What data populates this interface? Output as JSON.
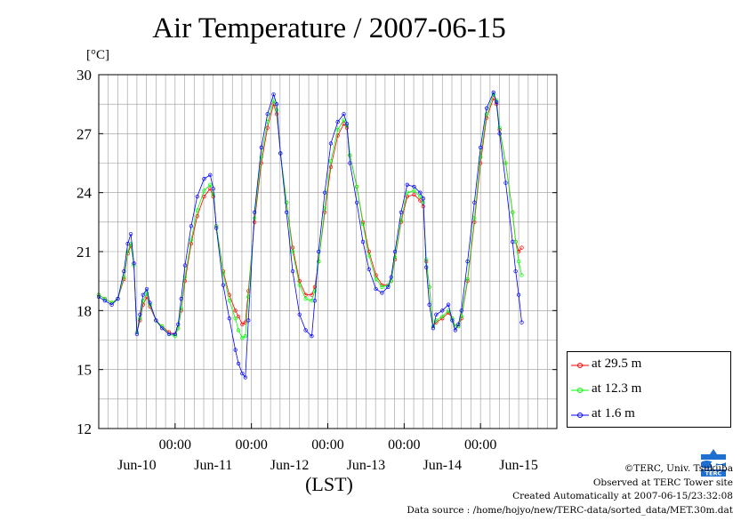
{
  "title": "Air Temperature / 2007-06-15",
  "y_unit": "[°C]",
  "x_unit": "(LST)",
  "legend": [
    {
      "label": "at 29.5 m",
      "color": "#ff0000"
    },
    {
      "label": "at 12.3 m",
      "color": "#00ff00"
    },
    {
      "label": "at 1.6 m",
      "color": "#0000ff"
    }
  ],
  "credits": {
    "copyright": "©TERC, Univ. Tsukuba",
    "observed": "Observed at TERC Tower site",
    "created": "Created Automatically at 2007-06-15/23:32:08",
    "source": "Data source : /home/hojyo/new/TERC-data/sorted_data/MET.30m.dat"
  },
  "chart_data": {
    "type": "line",
    "title": "Air Temperature / 2007-06-15",
    "ylabel": "[°C]",
    "xlabel": "(LST)",
    "ylim": [
      12,
      30
    ],
    "yticks": [
      12,
      15,
      18,
      21,
      24,
      27,
      30
    ],
    "xlim": [
      0,
      6
    ],
    "x_unit_note": "days since Jun-09 00:00",
    "xtick_labels_top": [
      "00:00",
      "00:00",
      "00:00",
      "00:00",
      "00:00"
    ],
    "xtick_labels_bottom": [
      "Jun-10",
      "Jun-11",
      "Jun-12",
      "Jun-13",
      "Jun-14",
      "Jun-15"
    ],
    "grid": true,
    "legend_position": "right",
    "series": [
      {
        "name": "at 29.5 m",
        "color": "#ff0000",
        "points": [
          [
            0.0,
            18.8
          ],
          [
            0.08,
            18.6
          ],
          [
            0.17,
            18.4
          ],
          [
            0.25,
            18.6
          ],
          [
            0.33,
            19.6
          ],
          [
            0.38,
            20.9
          ],
          [
            0.42,
            21.3
          ],
          [
            0.46,
            20.4
          ],
          [
            0.5,
            16.9
          ],
          [
            0.54,
            17.5
          ],
          [
            0.58,
            18.3
          ],
          [
            0.63,
            18.7
          ],
          [
            0.67,
            18.2
          ],
          [
            0.75,
            17.5
          ],
          [
            0.83,
            17.2
          ],
          [
            0.92,
            16.9
          ],
          [
            1.0,
            16.8
          ],
          [
            1.04,
            17.1
          ],
          [
            1.08,
            18.0
          ],
          [
            1.13,
            19.5
          ],
          [
            1.21,
            21.4
          ],
          [
            1.29,
            22.8
          ],
          [
            1.38,
            23.8
          ],
          [
            1.46,
            24.2
          ],
          [
            1.5,
            23.8
          ],
          [
            1.54,
            22.3
          ],
          [
            1.63,
            20.0
          ],
          [
            1.71,
            18.8
          ],
          [
            1.79,
            18.0
          ],
          [
            1.83,
            17.7
          ],
          [
            1.88,
            17.3
          ],
          [
            1.92,
            17.4
          ],
          [
            1.96,
            19.0
          ],
          [
            2.04,
            22.5
          ],
          [
            2.13,
            25.5
          ],
          [
            2.21,
            27.3
          ],
          [
            2.29,
            28.5
          ],
          [
            2.33,
            28.0
          ],
          [
            2.38,
            26.0
          ],
          [
            2.46,
            23.5
          ],
          [
            2.54,
            21.2
          ],
          [
            2.63,
            19.5
          ],
          [
            2.71,
            18.8
          ],
          [
            2.79,
            18.8
          ],
          [
            2.83,
            19.2
          ],
          [
            2.88,
            20.5
          ],
          [
            2.96,
            23.0
          ],
          [
            3.04,
            25.3
          ],
          [
            3.13,
            26.9
          ],
          [
            3.21,
            27.5
          ],
          [
            3.25,
            27.3
          ],
          [
            3.29,
            25.9
          ],
          [
            3.38,
            24.3
          ],
          [
            3.46,
            22.5
          ],
          [
            3.54,
            21.0
          ],
          [
            3.63,
            19.8
          ],
          [
            3.71,
            19.3
          ],
          [
            3.79,
            19.3
          ],
          [
            3.83,
            19.5
          ],
          [
            3.88,
            20.6
          ],
          [
            3.96,
            22.5
          ],
          [
            4.04,
            23.8
          ],
          [
            4.13,
            23.9
          ],
          [
            4.21,
            23.6
          ],
          [
            4.25,
            23.3
          ],
          [
            4.29,
            20.5
          ],
          [
            4.33,
            19.2
          ],
          [
            4.38,
            17.2
          ],
          [
            4.42,
            17.4
          ],
          [
            4.5,
            17.6
          ],
          [
            4.58,
            17.9
          ],
          [
            4.63,
            17.6
          ],
          [
            4.67,
            17.2
          ],
          [
            4.71,
            17.2
          ],
          [
            4.75,
            17.6
          ],
          [
            4.83,
            19.5
          ],
          [
            4.92,
            22.5
          ],
          [
            5.0,
            25.5
          ],
          [
            5.08,
            27.8
          ],
          [
            5.17,
            28.8
          ],
          [
            5.21,
            28.5
          ],
          [
            5.25,
            27.2
          ],
          [
            5.33,
            25.5
          ],
          [
            5.42,
            23.0
          ],
          [
            5.46,
            21.5
          ],
          [
            5.5,
            21.0
          ],
          [
            5.54,
            21.2
          ]
        ]
      },
      {
        "name": "at 12.3 m",
        "color": "#00ff00",
        "points": [
          [
            0.0,
            18.8
          ],
          [
            0.08,
            18.6
          ],
          [
            0.17,
            18.4
          ],
          [
            0.25,
            18.6
          ],
          [
            0.33,
            19.7
          ],
          [
            0.38,
            21.0
          ],
          [
            0.42,
            21.4
          ],
          [
            0.46,
            20.3
          ],
          [
            0.5,
            16.9
          ],
          [
            0.54,
            17.6
          ],
          [
            0.58,
            18.5
          ],
          [
            0.63,
            18.9
          ],
          [
            0.67,
            18.3
          ],
          [
            0.75,
            17.5
          ],
          [
            0.83,
            17.2
          ],
          [
            0.92,
            16.8
          ],
          [
            1.0,
            16.7
          ],
          [
            1.04,
            17.1
          ],
          [
            1.08,
            18.1
          ],
          [
            1.13,
            19.7
          ],
          [
            1.21,
            21.6
          ],
          [
            1.29,
            23.1
          ],
          [
            1.38,
            24.1
          ],
          [
            1.46,
            24.4
          ],
          [
            1.5,
            23.9
          ],
          [
            1.54,
            22.3
          ],
          [
            1.63,
            19.9
          ],
          [
            1.71,
            18.5
          ],
          [
            1.79,
            17.6
          ],
          [
            1.83,
            17.0
          ],
          [
            1.88,
            16.6
          ],
          [
            1.92,
            16.7
          ],
          [
            1.96,
            18.7
          ],
          [
            2.04,
            22.7
          ],
          [
            2.13,
            25.8
          ],
          [
            2.21,
            27.6
          ],
          [
            2.29,
            28.7
          ],
          [
            2.33,
            28.2
          ],
          [
            2.38,
            26.0
          ],
          [
            2.46,
            23.5
          ],
          [
            2.54,
            21.0
          ],
          [
            2.63,
            19.3
          ],
          [
            2.71,
            18.6
          ],
          [
            2.79,
            18.5
          ],
          [
            2.83,
            19.0
          ],
          [
            2.88,
            20.5
          ],
          [
            2.96,
            23.2
          ],
          [
            3.04,
            25.6
          ],
          [
            3.13,
            27.2
          ],
          [
            3.21,
            27.7
          ],
          [
            3.25,
            27.4
          ],
          [
            3.29,
            25.9
          ],
          [
            3.38,
            24.3
          ],
          [
            3.46,
            22.4
          ],
          [
            3.54,
            20.8
          ],
          [
            3.63,
            19.6
          ],
          [
            3.71,
            19.2
          ],
          [
            3.79,
            19.3
          ],
          [
            3.83,
            19.5
          ],
          [
            3.88,
            20.7
          ],
          [
            3.96,
            22.6
          ],
          [
            4.04,
            24.0
          ],
          [
            4.13,
            24.1
          ],
          [
            4.21,
            23.8
          ],
          [
            4.25,
            23.5
          ],
          [
            4.29,
            20.6
          ],
          [
            4.33,
            19.2
          ],
          [
            4.38,
            17.2
          ],
          [
            4.42,
            17.5
          ],
          [
            4.5,
            17.7
          ],
          [
            4.58,
            18.0
          ],
          [
            4.63,
            17.6
          ],
          [
            4.67,
            17.2
          ],
          [
            4.71,
            17.2
          ],
          [
            4.75,
            17.7
          ],
          [
            4.83,
            19.6
          ],
          [
            4.92,
            22.7
          ],
          [
            5.0,
            25.8
          ],
          [
            5.08,
            28.0
          ],
          [
            5.17,
            29.0
          ],
          [
            5.21,
            28.7
          ],
          [
            5.25,
            27.3
          ],
          [
            5.33,
            25.5
          ],
          [
            5.42,
            23.0
          ],
          [
            5.46,
            21.5
          ],
          [
            5.5,
            20.5
          ],
          [
            5.54,
            19.8
          ]
        ]
      },
      {
        "name": "at 1.6 m",
        "color": "#0000ff",
        "points": [
          [
            0.0,
            18.7
          ],
          [
            0.08,
            18.5
          ],
          [
            0.17,
            18.3
          ],
          [
            0.25,
            18.6
          ],
          [
            0.33,
            20.0
          ],
          [
            0.38,
            21.4
          ],
          [
            0.42,
            21.9
          ],
          [
            0.46,
            20.4
          ],
          [
            0.5,
            16.8
          ],
          [
            0.54,
            17.8
          ],
          [
            0.58,
            18.8
          ],
          [
            0.63,
            19.1
          ],
          [
            0.67,
            18.4
          ],
          [
            0.75,
            17.5
          ],
          [
            0.83,
            17.1
          ],
          [
            0.92,
            16.8
          ],
          [
            1.0,
            16.8
          ],
          [
            1.04,
            17.3
          ],
          [
            1.08,
            18.6
          ],
          [
            1.13,
            20.3
          ],
          [
            1.21,
            22.3
          ],
          [
            1.29,
            23.8
          ],
          [
            1.38,
            24.7
          ],
          [
            1.46,
            24.9
          ],
          [
            1.5,
            24.2
          ],
          [
            1.54,
            22.2
          ],
          [
            1.63,
            19.3
          ],
          [
            1.71,
            17.6
          ],
          [
            1.79,
            16.0
          ],
          [
            1.83,
            15.3
          ],
          [
            1.88,
            14.8
          ],
          [
            1.92,
            14.6
          ],
          [
            1.96,
            17.5
          ],
          [
            2.04,
            23.0
          ],
          [
            2.13,
            26.3
          ],
          [
            2.21,
            28.0
          ],
          [
            2.29,
            29.0
          ],
          [
            2.33,
            28.5
          ],
          [
            2.38,
            26.0
          ],
          [
            2.46,
            23.0
          ],
          [
            2.54,
            20.0
          ],
          [
            2.63,
            17.8
          ],
          [
            2.71,
            17.0
          ],
          [
            2.79,
            16.7
          ],
          [
            2.83,
            18.5
          ],
          [
            2.88,
            21.0
          ],
          [
            2.96,
            24.0
          ],
          [
            3.04,
            26.5
          ],
          [
            3.13,
            27.6
          ],
          [
            3.21,
            28.0
          ],
          [
            3.25,
            27.5
          ],
          [
            3.29,
            25.5
          ],
          [
            3.38,
            23.5
          ],
          [
            3.46,
            21.5
          ],
          [
            3.54,
            20.1
          ],
          [
            3.63,
            19.1
          ],
          [
            3.71,
            18.9
          ],
          [
            3.79,
            19.2
          ],
          [
            3.83,
            19.7
          ],
          [
            3.88,
            21.0
          ],
          [
            3.96,
            23.0
          ],
          [
            4.04,
            24.4
          ],
          [
            4.13,
            24.3
          ],
          [
            4.21,
            24.0
          ],
          [
            4.25,
            23.7
          ],
          [
            4.29,
            20.2
          ],
          [
            4.33,
            18.3
          ],
          [
            4.38,
            17.1
          ],
          [
            4.42,
            17.8
          ],
          [
            4.5,
            18.0
          ],
          [
            4.58,
            18.3
          ],
          [
            4.63,
            17.5
          ],
          [
            4.67,
            17.0
          ],
          [
            4.71,
            17.3
          ],
          [
            4.75,
            18.0
          ],
          [
            4.83,
            20.5
          ],
          [
            4.92,
            23.5
          ],
          [
            5.0,
            26.3
          ],
          [
            5.08,
            28.3
          ],
          [
            5.17,
            29.1
          ],
          [
            5.21,
            28.6
          ],
          [
            5.25,
            27.0
          ],
          [
            5.33,
            24.5
          ],
          [
            5.42,
            21.5
          ],
          [
            5.46,
            20.0
          ],
          [
            5.5,
            18.8
          ],
          [
            5.54,
            17.4
          ]
        ]
      }
    ]
  }
}
